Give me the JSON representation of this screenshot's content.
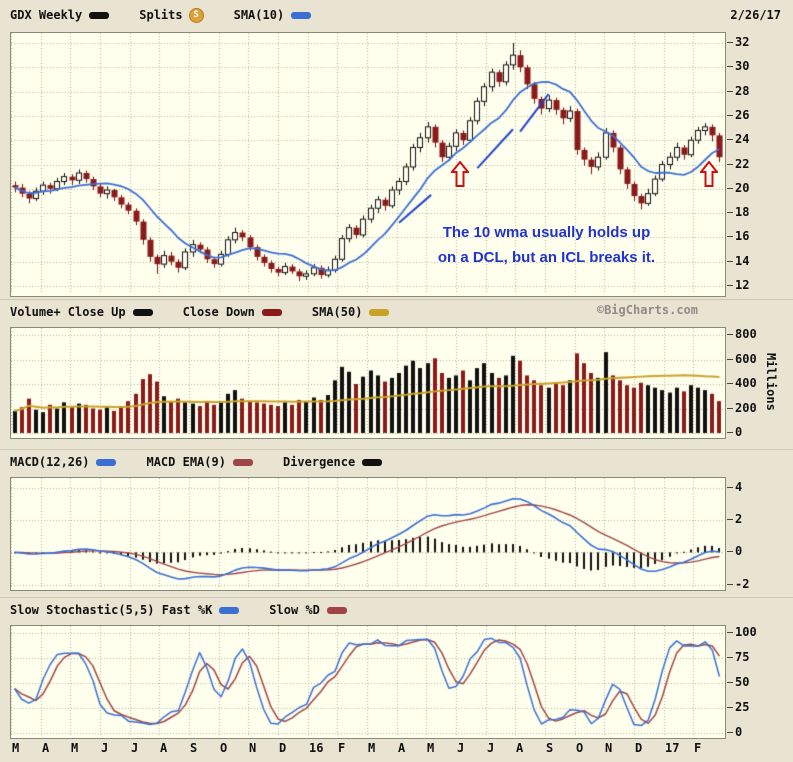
{
  "header": {
    "symbol": "GDX Weekly",
    "symbol_color": "#111111",
    "splits_label": "Splits",
    "splits_badge": "S",
    "splits_badge_color": "#DFA035",
    "sma_label": "SMA(10)",
    "sma_color": "#3B6FD4",
    "date": "2/26/17"
  },
  "price": {
    "annotation": {
      "line1": "The 10 wma usually holds up",
      "line2": "on a DCL, but an ICL breaks it.",
      "color": "#2233CC"
    }
  },
  "volume": {
    "legend": [
      {
        "label": "Volume+ Close Up",
        "color": "#111111"
      },
      {
        "label": "Close Down",
        "color": "#8B1A1A"
      },
      {
        "label": "SMA(50)",
        "color": "#C9A227"
      }
    ],
    "watermark": "©BigCharts.com",
    "ylabel": "Millions"
  },
  "macd": {
    "legend": [
      {
        "label": "MACD(12,26)",
        "color": "#3B6FD4"
      },
      {
        "label": "MACD EMA(9)",
        "color": "#A04545"
      },
      {
        "label": "Divergence",
        "color": "#111111"
      }
    ]
  },
  "stoch": {
    "legend": [
      {
        "label": "Slow Stochastic(5,5) Fast %K",
        "color": "#3B6FD4"
      },
      {
        "label": "Slow %D",
        "color": "#A04545"
      }
    ]
  },
  "x_labels": [
    "M",
    "A",
    "M",
    "J",
    "J",
    "A",
    "S",
    "O",
    "N",
    "D",
    "16",
    "F",
    "M",
    "A",
    "M",
    "J",
    "J",
    "A",
    "S",
    "O",
    "N",
    "D",
    "17",
    "F"
  ],
  "chart_data": [
    {
      "type": "candlestick",
      "name": "price",
      "symbol": "GDX",
      "interval": "weekly",
      "date_range": "Mar 2015 - Feb 2017",
      "ylim": [
        12,
        32
      ],
      "y_ticks": [
        32,
        30,
        28,
        26,
        24,
        22,
        20,
        18,
        16,
        14,
        12
      ],
      "overlay": "SMA(10)",
      "grid": "dotted",
      "style": {
        "up_fill": "#FFFDF2",
        "up_stroke": "#111111",
        "down_fill": "#8B1A1A",
        "down_stroke": "#7A1010",
        "sma": "#3B6FD4",
        "grid": "#B7B296",
        "trendline": "#2244CC",
        "arrow": "#CC1111",
        "arrow_fill": "#FFFDF0"
      },
      "trendlines": [
        [
          54,
          17.2,
          58.5,
          19.5
        ],
        [
          65,
          21.7,
          70,
          24.9
        ],
        [
          71,
          24.7,
          75,
          27.8
        ]
      ],
      "arrows": [
        [
          62.6,
          22.3
        ],
        [
          97.6,
          22.3
        ]
      ],
      "ohlc": [
        [
          20.3,
          20.6,
          19.7,
          20.1
        ],
        [
          20.1,
          20.4,
          19.3,
          19.6
        ],
        [
          19.6,
          19.8,
          18.8,
          19.2
        ],
        [
          19.2,
          20.1,
          19.0,
          19.8
        ],
        [
          19.8,
          20.6,
          19.5,
          20.3
        ],
        [
          20.3,
          20.5,
          19.6,
          20.0
        ],
        [
          20.0,
          20.9,
          19.8,
          20.6
        ],
        [
          20.6,
          21.3,
          20.3,
          21.0
        ],
        [
          21.0,
          21.2,
          20.3,
          20.7
        ],
        [
          20.7,
          21.6,
          20.4,
          21.3
        ],
        [
          21.3,
          21.5,
          20.5,
          20.8
        ],
        [
          20.8,
          21.0,
          19.9,
          20.2
        ],
        [
          20.2,
          20.4,
          19.3,
          19.6
        ],
        [
          19.6,
          20.2,
          19.2,
          19.9
        ],
        [
          19.9,
          20.0,
          19.0,
          19.3
        ],
        [
          19.3,
          19.5,
          18.4,
          18.7
        ],
        [
          18.7,
          18.9,
          17.9,
          18.2
        ],
        [
          18.2,
          18.4,
          17.0,
          17.3
        ],
        [
          17.3,
          17.5,
          15.4,
          15.8
        ],
        [
          15.8,
          16.0,
          14.0,
          14.4
        ],
        [
          14.4,
          14.6,
          13.0,
          13.8
        ],
        [
          13.8,
          14.9,
          13.5,
          14.5
        ],
        [
          14.5,
          14.8,
          13.7,
          14.0
        ],
        [
          14.0,
          14.2,
          13.1,
          13.5
        ],
        [
          13.5,
          15.1,
          13.3,
          14.8
        ],
        [
          14.8,
          15.8,
          14.4,
          15.4
        ],
        [
          15.4,
          15.6,
          14.7,
          15.0
        ],
        [
          15.0,
          15.2,
          13.9,
          14.2
        ],
        [
          14.2,
          14.4,
          13.5,
          13.8
        ],
        [
          13.8,
          14.9,
          13.6,
          14.6
        ],
        [
          14.6,
          16.1,
          14.4,
          15.8
        ],
        [
          15.8,
          16.8,
          15.5,
          16.4
        ],
        [
          16.4,
          16.6,
          15.7,
          16.0
        ],
        [
          16.0,
          16.2,
          14.9,
          15.2
        ],
        [
          15.2,
          15.4,
          14.1,
          14.4
        ],
        [
          14.4,
          14.6,
          13.6,
          13.9
        ],
        [
          13.9,
          14.1,
          13.1,
          13.4
        ],
        [
          13.4,
          13.6,
          12.8,
          13.1
        ],
        [
          13.1,
          13.9,
          12.9,
          13.6
        ],
        [
          13.6,
          13.8,
          13.0,
          13.2
        ],
        [
          13.2,
          13.4,
          12.4,
          12.8
        ],
        [
          12.8,
          13.3,
          12.5,
          13.0
        ],
        [
          13.0,
          13.8,
          12.8,
          13.5
        ],
        [
          13.5,
          13.7,
          12.6,
          12.9
        ],
        [
          12.9,
          13.6,
          12.7,
          13.3
        ],
        [
          13.3,
          14.5,
          13.1,
          14.2
        ],
        [
          14.2,
          16.2,
          14.0,
          15.9
        ],
        [
          15.9,
          17.1,
          15.6,
          16.8
        ],
        [
          16.8,
          17.0,
          15.9,
          16.2
        ],
        [
          16.2,
          17.8,
          16.0,
          17.5
        ],
        [
          17.5,
          18.7,
          17.2,
          18.4
        ],
        [
          18.4,
          19.4,
          18.0,
          19.1
        ],
        [
          19.1,
          19.3,
          18.2,
          18.6
        ],
        [
          18.6,
          20.2,
          18.4,
          19.9
        ],
        [
          19.9,
          20.9,
          19.5,
          20.6
        ],
        [
          20.6,
          22.1,
          20.3,
          21.8
        ],
        [
          21.8,
          23.7,
          21.5,
          23.4
        ],
        [
          23.4,
          24.6,
          23.0,
          24.2
        ],
        [
          24.2,
          25.5,
          23.8,
          25.1
        ],
        [
          25.1,
          25.3,
          23.4,
          23.8
        ],
        [
          23.8,
          24.0,
          22.2,
          22.6
        ],
        [
          22.6,
          23.8,
          22.3,
          23.5
        ],
        [
          23.5,
          24.9,
          23.1,
          24.6
        ],
        [
          24.6,
          24.8,
          23.6,
          24.0
        ],
        [
          24.0,
          25.9,
          23.8,
          25.6
        ],
        [
          25.6,
          27.5,
          25.3,
          27.2
        ],
        [
          27.2,
          28.7,
          26.8,
          28.4
        ],
        [
          28.4,
          29.9,
          28.0,
          29.6
        ],
        [
          29.6,
          29.8,
          28.4,
          28.8
        ],
        [
          28.8,
          30.5,
          28.5,
          30.2
        ],
        [
          30.2,
          32.0,
          29.8,
          31.0
        ],
        [
          31.0,
          31.4,
          29.6,
          30.0
        ],
        [
          30.0,
          30.2,
          28.2,
          28.6
        ],
        [
          28.6,
          28.8,
          27.0,
          27.4
        ],
        [
          27.4,
          27.6,
          26.1,
          26.6
        ],
        [
          26.6,
          27.7,
          26.3,
          27.3
        ],
        [
          27.3,
          27.5,
          26.1,
          26.5
        ],
        [
          26.5,
          26.7,
          25.3,
          25.8
        ],
        [
          25.8,
          26.8,
          25.5,
          26.4
        ],
        [
          26.4,
          26.6,
          22.8,
          23.2
        ],
        [
          23.2,
          23.4,
          21.9,
          22.4
        ],
        [
          22.4,
          22.6,
          21.2,
          21.8
        ],
        [
          21.8,
          23.0,
          21.5,
          22.6
        ],
        [
          22.6,
          25.0,
          22.4,
          24.6
        ],
        [
          24.6,
          24.8,
          23.0,
          23.4
        ],
        [
          23.4,
          23.6,
          21.2,
          21.6
        ],
        [
          21.6,
          21.8,
          20.0,
          20.4
        ],
        [
          20.4,
          20.6,
          19.0,
          19.4
        ],
        [
          19.4,
          19.6,
          18.3,
          18.8
        ],
        [
          18.8,
          20.0,
          18.6,
          19.6
        ],
        [
          19.6,
          21.1,
          19.4,
          20.8
        ],
        [
          20.8,
          22.3,
          20.6,
          22.0
        ],
        [
          22.0,
          23.0,
          21.6,
          22.6
        ],
        [
          22.6,
          23.8,
          22.3,
          23.4
        ],
        [
          23.4,
          23.6,
          22.4,
          22.8
        ],
        [
          22.8,
          24.3,
          22.6,
          24.0
        ],
        [
          24.0,
          25.1,
          23.7,
          24.8
        ],
        [
          24.8,
          25.4,
          24.4,
          25.1
        ],
        [
          25.1,
          25.3,
          23.9,
          24.4
        ],
        [
          24.4,
          24.6,
          22.2,
          22.6
        ]
      ]
    },
    {
      "type": "bar",
      "name": "volume",
      "units": "millions",
      "ylim": [
        0,
        800
      ],
      "y_ticks": [
        800,
        600,
        400,
        200,
        0
      ],
      "overlay": "SMA(50)",
      "bar_color_rule": "black if close up vs prior week, dark red if close down",
      "style": {
        "up": "#111111",
        "down": "#8B1A1A",
        "sma": "#C9A227"
      },
      "values": [
        180,
        210,
        280,
        190,
        170,
        230,
        200,
        250,
        210,
        240,
        230,
        200,
        190,
        210,
        180,
        220,
        260,
        320,
        440,
        480,
        420,
        300,
        260,
        280,
        250,
        240,
        220,
        260,
        230,
        250,
        320,
        350,
        280,
        260,
        250,
        240,
        230,
        220,
        250,
        230,
        270,
        260,
        290,
        270,
        310,
        430,
        540,
        500,
        400,
        460,
        510,
        470,
        420,
        450,
        490,
        550,
        590,
        530,
        570,
        610,
        490,
        450,
        470,
        510,
        430,
        530,
        570,
        490,
        450,
        470,
        630,
        590,
        470,
        430,
        390,
        370,
        410,
        390,
        430,
        650,
        570,
        490,
        450,
        660,
        470,
        430,
        390,
        370,
        410,
        390,
        370,
        350,
        330,
        370,
        340,
        390,
        370,
        350,
        320,
        260
      ]
    },
    {
      "type": "line",
      "name": "macd",
      "params": "MACD(12,26) with EMA(9) signal, Divergence histogram",
      "ylim": [
        -2.2,
        4.6
      ],
      "y_ticks": [
        4,
        2,
        0,
        -2
      ],
      "series_from": "computed from weekly closes in chart_data[0]",
      "style": {
        "macd": "#3B6FD4",
        "signal": "#A04545",
        "hist": "#111111"
      }
    },
    {
      "type": "line",
      "name": "stochastic",
      "params": "Slow Stochastic(5,5)",
      "ylim": [
        0,
        100
      ],
      "y_ticks": [
        100,
        75,
        50,
        25,
        0
      ],
      "series_from": "computed from weekly ohlc in chart_data[0]",
      "style": {
        "k": "#3B6FD4",
        "d": "#A04545"
      }
    }
  ]
}
